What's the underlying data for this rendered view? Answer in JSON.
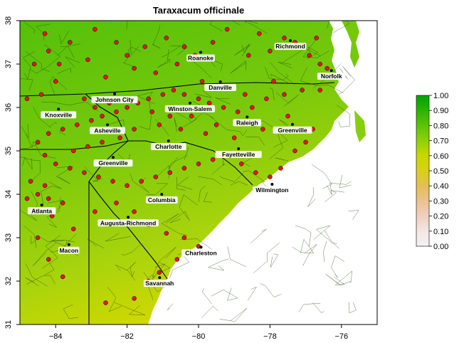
{
  "title": "Taraxacum officinale",
  "colors": {
    "land_high": "#5ec20a",
    "land_mid": "#8fd00c",
    "land_low": "#c8d800",
    "ocean": "#ffffff",
    "occurrence": "#e8141b",
    "border": "#000000"
  },
  "x_axis": {
    "ticks": [
      -84,
      -82,
      -80,
      -78,
      -76
    ],
    "range": [
      -85,
      -75
    ]
  },
  "y_axis": {
    "ticks": [
      31,
      32,
      33,
      34,
      35,
      36,
      37,
      38
    ],
    "range": [
      31,
      38
    ]
  },
  "legend": {
    "ticks": [
      "1.00",
      "0.90",
      "0.80",
      "0.70",
      "0.60",
      "0.50",
      "0.40",
      "0.30",
      "0.20",
      "0.10",
      "0.00"
    ],
    "colors": [
      "#00a400",
      "#2bb300",
      "#5ec20a",
      "#8fd00c",
      "#c8d800",
      "#d9cf1c",
      "#e2bf55",
      "#ebc190",
      "#f0cfc0",
      "#f3e6e4",
      "#f2f2f2"
    ]
  },
  "cities": [
    {
      "name": "Richmond",
      "lon": -77.43,
      "lat": 37.54
    },
    {
      "name": "Roanoke",
      "lon": -79.94,
      "lat": 37.27
    },
    {
      "name": "Norfolk",
      "lon": -76.28,
      "lat": 36.85
    },
    {
      "name": "Danville",
      "lon": -79.39,
      "lat": 36.59
    },
    {
      "name": "Johnson City",
      "lon": -82.35,
      "lat": 36.31
    },
    {
      "name": "Winston-Salem",
      "lon": -80.24,
      "lat": 36.1
    },
    {
      "name": "Knoxville",
      "lon": -83.92,
      "lat": 35.96
    },
    {
      "name": "Raleigh",
      "lon": -78.64,
      "lat": 35.78
    },
    {
      "name": "Greenville",
      "lon": -77.37,
      "lat": 35.61
    },
    {
      "name": "Asheville",
      "lon": -82.55,
      "lat": 35.6
    },
    {
      "name": "Charlotte",
      "lon": -80.84,
      "lat": 35.23
    },
    {
      "name": "Fayetteville",
      "lon": -78.88,
      "lat": 35.05
    },
    {
      "name": "Greenville",
      "lon": -82.39,
      "lat": 34.85
    },
    {
      "name": "Wilmington",
      "lon": -77.94,
      "lat": 34.23
    },
    {
      "name": "Columbia",
      "lon": -81.03,
      "lat": 34.0
    },
    {
      "name": "Atlanta",
      "lon": -84.39,
      "lat": 33.75
    },
    {
      "name": "Augusta-Richmond",
      "lon": -81.97,
      "lat": 33.47
    },
    {
      "name": "Macon",
      "lon": -83.63,
      "lat": 32.84
    },
    {
      "name": "Charleston",
      "lon": -79.93,
      "lat": 32.78
    },
    {
      "name": "Savannah",
      "lon": -81.09,
      "lat": 32.08
    }
  ],
  "occurrences": [
    [
      -84.2,
      37.3
    ],
    [
      -84.6,
      37.0
    ],
    [
      -84.0,
      36.6
    ],
    [
      -84.4,
      36.3
    ],
    [
      -84.8,
      36.2
    ],
    [
      -83.6,
      37.5
    ],
    [
      -83.1,
      37.1
    ],
    [
      -82.6,
      36.7
    ],
    [
      -82.0,
      37.2
    ],
    [
      -81.8,
      36.9
    ],
    [
      -81.2,
      36.8
    ],
    [
      -80.9,
      37.6
    ],
    [
      -80.4,
      37.4
    ],
    [
      -80.1,
      37.2
    ],
    [
      -79.6,
      37.5
    ],
    [
      -79.2,
      37.8
    ],
    [
      -78.6,
      37.2
    ],
    [
      -78.0,
      37.3
    ],
    [
      -77.6,
      37.6
    ],
    [
      -77.3,
      37.5
    ],
    [
      -76.9,
      37.2
    ],
    [
      -76.6,
      37.0
    ],
    [
      -76.4,
      36.9
    ],
    [
      -76.3,
      36.7
    ],
    [
      -76.6,
      36.4
    ],
    [
      -77.1,
      36.4
    ],
    [
      -77.6,
      36.3
    ],
    [
      -78.1,
      36.2
    ],
    [
      -78.5,
      36.0
    ],
    [
      -78.9,
      35.9
    ],
    [
      -79.3,
      36.0
    ],
    [
      -79.7,
      36.1
    ],
    [
      -80.0,
      36.2
    ],
    [
      -80.4,
      36.3
    ],
    [
      -80.7,
      36.4
    ],
    [
      -81.0,
      36.3
    ],
    [
      -81.4,
      36.2
    ],
    [
      -81.7,
      36.1
    ],
    [
      -82.0,
      36.0
    ],
    [
      -82.3,
      35.9
    ],
    [
      -82.7,
      35.8
    ],
    [
      -83.0,
      35.7
    ],
    [
      -83.4,
      35.6
    ],
    [
      -83.8,
      35.5
    ],
    [
      -84.2,
      35.4
    ],
    [
      -84.5,
      35.2
    ],
    [
      -84.3,
      34.9
    ],
    [
      -84.0,
      34.7
    ],
    [
      -83.6,
      34.6
    ],
    [
      -83.2,
      34.5
    ],
    [
      -82.8,
      34.4
    ],
    [
      -82.4,
      34.3
    ],
    [
      -82.0,
      34.2
    ],
    [
      -81.6,
      34.3
    ],
    [
      -81.2,
      34.4
    ],
    [
      -80.8,
      34.5
    ],
    [
      -80.4,
      34.6
    ],
    [
      -80.0,
      34.7
    ],
    [
      -79.6,
      34.8
    ],
    [
      -79.2,
      34.9
    ],
    [
      -78.8,
      34.7
    ],
    [
      -78.4,
      34.5
    ],
    [
      -78.0,
      34.4
    ],
    [
      -77.7,
      34.6
    ],
    [
      -77.3,
      35.0
    ],
    [
      -77.0,
      35.2
    ],
    [
      -76.8,
      35.5
    ],
    [
      -77.5,
      35.8
    ],
    [
      -78.2,
      35.5
    ],
    [
      -79.0,
      35.3
    ],
    [
      -79.8,
      35.4
    ],
    [
      -80.5,
      35.5
    ],
    [
      -81.1,
      35.6
    ],
    [
      -81.8,
      35.5
    ],
    [
      -82.2,
      35.3
    ],
    [
      -82.7,
      35.2
    ],
    [
      -83.1,
      35.1
    ],
    [
      -83.5,
      35.0
    ],
    [
      -84.7,
      34.3
    ],
    [
      -84.5,
      34.0
    ],
    [
      -84.2,
      33.9
    ],
    [
      -84.6,
      33.6
    ],
    [
      -84.1,
      33.5
    ],
    [
      -83.8,
      33.8
    ],
    [
      -84.3,
      34.2
    ],
    [
      -84.8,
      33.9
    ],
    [
      -83.5,
      33.2
    ],
    [
      -82.9,
      33.6
    ],
    [
      -82.3,
      33.8
    ],
    [
      -81.8,
      33.6
    ],
    [
      -81.4,
      33.3
    ],
    [
      -80.9,
      33.1
    ],
    [
      -80.4,
      33.0
    ],
    [
      -80.0,
      32.8
    ],
    [
      -80.6,
      32.5
    ],
    [
      -81.1,
      32.2
    ],
    [
      -81.4,
      32.0
    ],
    [
      -81.8,
      31.6
    ],
    [
      -82.6,
      31.5
    ],
    [
      -83.8,
      32.1
    ],
    [
      -84.2,
      32.5
    ],
    [
      -84.5,
      33.0
    ],
    [
      -83.2,
      36.2
    ],
    [
      -82.9,
      36.0
    ],
    [
      -82.5,
      36.1
    ],
    [
      -81.3,
      35.9
    ],
    [
      -80.8,
      35.8
    ],
    [
      -80.2,
      35.8
    ],
    [
      -79.5,
      35.6
    ],
    [
      -78.7,
      36.3
    ],
    [
      -77.9,
      36.6
    ],
    [
      -79.9,
      36.6
    ],
    [
      -80.6,
      37.0
    ],
    [
      -81.5,
      37.4
    ],
    [
      -82.3,
      37.5
    ],
    [
      -82.9,
      37.8
    ],
    [
      -84.3,
      37.7
    ],
    [
      -83.9,
      37.0
    ],
    [
      -78.3,
      37.7
    ],
    [
      -76.7,
      37.6
    ]
  ]
}
